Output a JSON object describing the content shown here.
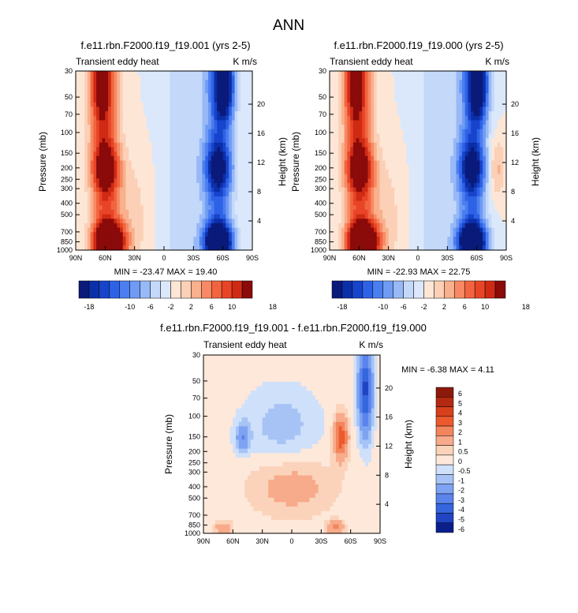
{
  "page_title": "ANN",
  "chart_data": [
    {
      "type": "heatmap",
      "title": "f.e11.rbn.F2000.f19_f19.001 (yrs 2-5)",
      "subtitle_left": "Transient eddy heat",
      "subtitle_right": "K m/s",
      "ylabel": "Pressure (mb)",
      "y2label": "Height (km)",
      "x_ticks": [
        "90N",
        "60N",
        "30N",
        "0",
        "30S",
        "60S",
        "90S"
      ],
      "y_ticks": [
        "30",
        "50",
        "70",
        "100",
        "150",
        "200",
        "250",
        "300",
        "400",
        "500",
        "700",
        "850",
        "1000"
      ],
      "y2_ticks": [
        "20",
        "16",
        "12",
        "8",
        "4"
      ],
      "min_max_text": "MIN = -23.47  MAX = 19.40",
      "min": -23.47,
      "max": 19.4,
      "colorbar_labels": [
        "-18",
        "-10",
        "-6",
        "-2",
        "2",
        "6",
        "10",
        "18"
      ]
    },
    {
      "type": "heatmap",
      "title": "f.e11.rbn.F2000.f19_f19.000 (yrs 2-5)",
      "subtitle_left": "Transient eddy heat",
      "subtitle_right": "K m/s",
      "ylabel": "Pressure (mb)",
      "y2label": "Height (km)",
      "x_ticks": [
        "90N",
        "60N",
        "30N",
        "0",
        "30S",
        "60S",
        "90S"
      ],
      "y_ticks": [
        "30",
        "50",
        "70",
        "100",
        "150",
        "200",
        "250",
        "300",
        "400",
        "500",
        "700",
        "850",
        "1000"
      ],
      "y2_ticks": [
        "20",
        "16",
        "12",
        "8",
        "4"
      ],
      "min_max_text": "MIN = -22.93  MAX = 22.75",
      "min": -22.93,
      "max": 22.75,
      "colorbar_labels": [
        "-18",
        "-10",
        "-6",
        "-2",
        "2",
        "6",
        "10",
        "18"
      ]
    },
    {
      "type": "heatmap",
      "title": "f.e11.rbn.F2000.f19_f19.001 - f.e11.rbn.F2000.f19_f19.000",
      "subtitle_left": "Transient eddy heat",
      "subtitle_right": "K m/s",
      "ylabel": "Pressure (mb)",
      "y2label": "Height (km)",
      "x_ticks": [
        "90N",
        "60N",
        "30N",
        "0",
        "30S",
        "60S",
        "90S"
      ],
      "y_ticks": [
        "30",
        "50",
        "70",
        "100",
        "150",
        "200",
        "250",
        "300",
        "400",
        "500",
        "700",
        "850",
        "1000"
      ],
      "y2_ticks": [
        "20",
        "16",
        "12",
        "8",
        "4"
      ],
      "min_max_text": "MIN =  -6.38  MAX =  4.11",
      "min": -6.38,
      "max": 4.11,
      "colorbar_labels": [
        "6",
        "5",
        "4",
        "3",
        "2",
        "1",
        "0.5",
        "0",
        "-0.5",
        "-1",
        "-2",
        "-3",
        "-4",
        "-5",
        "-6"
      ]
    }
  ],
  "colors": {
    "panel_palette": [
      "#0a1a7a",
      "#0b2fa8",
      "#1844cc",
      "#2e62e6",
      "#4b7ef0",
      "#6f9bf4",
      "#98b9f7",
      "#c4d8fa",
      "#dbe8fb",
      "#fde6d6",
      "#fbd0b6",
      "#f9b08c",
      "#f78a64",
      "#f26440",
      "#e84526",
      "#cf2b14",
      "#8b0a0a"
    ],
    "diff_palette": [
      "#8b1a0a",
      "#b32a10",
      "#d8401c",
      "#ec5a2e",
      "#f3855d",
      "#f7ab8a",
      "#fbd3bb",
      "#fde8da",
      "#cfe0fb",
      "#a7c3f6",
      "#7ea3f2",
      "#5a84ec",
      "#3566de",
      "#1f45c4",
      "#0a1f8c"
    ]
  }
}
